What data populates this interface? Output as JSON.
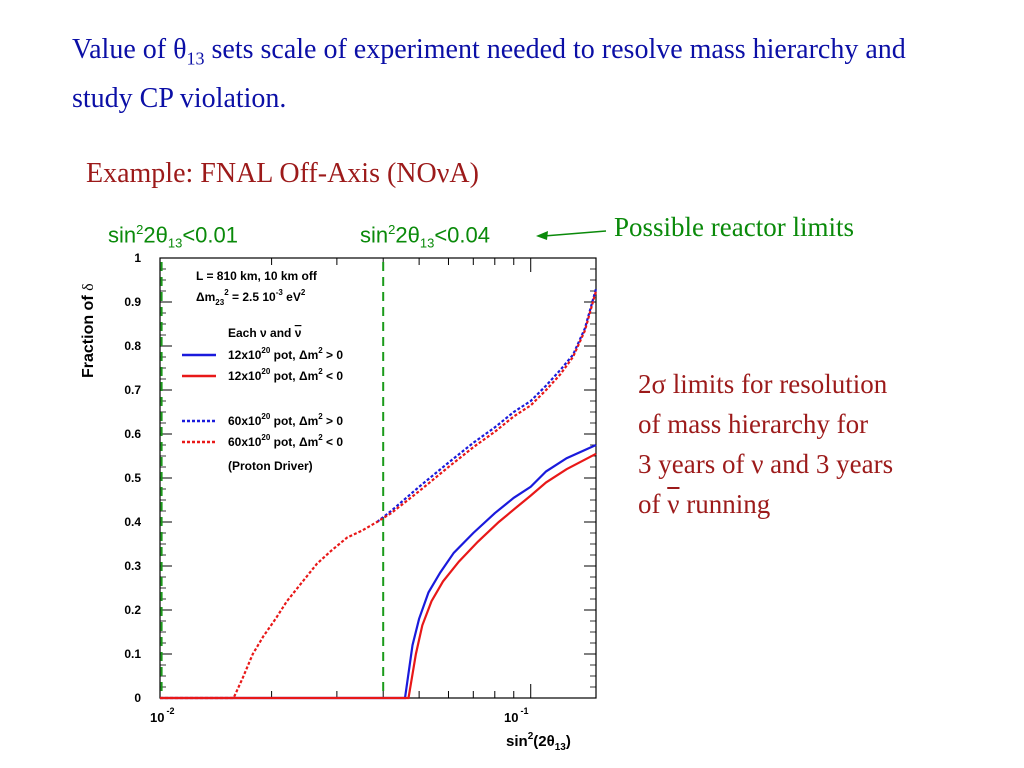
{
  "heading": {
    "part1": "Value of θ",
    "sub": "13",
    "part2": " sets scale of experiment needed to resolve mass hierarchy and study CP violation."
  },
  "example_title": "Example: FNAL Off-Axis (NOνA)",
  "limit_labels": {
    "left": {
      "pre": "sin",
      "sup": "2",
      "mid": "2θ",
      "sub": "13",
      "post": "<0.01"
    },
    "right": {
      "pre": "sin",
      "sup": "2",
      "mid": "2θ",
      "sub": "13",
      "post": "<0.04"
    }
  },
  "reactor_label": "Possible reactor limits",
  "note": {
    "line1": "2σ limits for resolution",
    "line2": "of mass hierarchy for",
    "line3": "3 years of ν and 3 years",
    "line4_pre": "of ",
    "line4_nu": "ν",
    "line4_post": " running"
  },
  "colors": {
    "blue": "#1a1adc",
    "red": "#e81818",
    "green": "#1a9a1a",
    "heading_blue": "#0b0fa6",
    "dark_red": "#9c1a1a"
  },
  "chart_data": {
    "type": "line",
    "xlabel": {
      "pre": "sin",
      "sup": "2",
      "mid": "(2θ",
      "sub": "13",
      "post": ")"
    },
    "ylabel": {
      "pre": "Fraction of ",
      "sym": "δ"
    },
    "xscale": "log",
    "xlim": [
      0.01,
      0.15
    ],
    "ylim": [
      0,
      1
    ],
    "xtick_labels": [
      {
        "value": 0.01,
        "base": "10",
        "exp": "-2"
      },
      {
        "value": 0.1,
        "base": "10",
        "exp": "-1"
      }
    ],
    "yticks": [
      0,
      0.1,
      0.2,
      0.3,
      0.4,
      0.5,
      0.6,
      0.7,
      0.8,
      0.9,
      1
    ],
    "ytick_labels": [
      "0",
      "0.1",
      "0.2",
      "0.3",
      "0.4",
      "0.5",
      "0.6",
      "0.7",
      "0.8",
      "0.9",
      "1"
    ],
    "vlines": [
      {
        "x": 0.0101,
        "color": "#1a9a1a"
      },
      {
        "x": 0.04,
        "color": "#1a9a1a"
      }
    ],
    "info": {
      "line1": "L = 810 km, 10 km off",
      "line2": {
        "pre": "Δm",
        "sub": "23",
        "sup": "2",
        "post": " = 2.5 10",
        "exp": "-3",
        "tail": " eV",
        "tail_sup": "2"
      },
      "each": {
        "pre": "Each ν and ",
        "nubar": "ν"
      },
      "proton": "(Proton Driver)"
    },
    "series": [
      {
        "legend": {
          "pre": "12x10",
          "sup": "20",
          "mid": " pot, Δm",
          "sup2": "2",
          "post": " > 0"
        },
        "color": "#1a1adc",
        "dash": false,
        "points": [
          [
            0.01,
            0
          ],
          [
            0.0458,
            0
          ],
          [
            0.048,
            0.12
          ],
          [
            0.05,
            0.18
          ],
          [
            0.053,
            0.24
          ],
          [
            0.057,
            0.285
          ],
          [
            0.062,
            0.33
          ],
          [
            0.07,
            0.375
          ],
          [
            0.08,
            0.42
          ],
          [
            0.09,
            0.455
          ],
          [
            0.1,
            0.48
          ],
          [
            0.11,
            0.515
          ],
          [
            0.125,
            0.545
          ],
          [
            0.15,
            0.575
          ]
        ]
      },
      {
        "legend": {
          "pre": "12x10",
          "sup": "20",
          "mid": " pot, Δm",
          "sup2": "2",
          "post": " < 0"
        },
        "color": "#e81818",
        "dash": false,
        "points": [
          [
            0.01,
            0
          ],
          [
            0.0468,
            0
          ],
          [
            0.049,
            0.1
          ],
          [
            0.051,
            0.165
          ],
          [
            0.054,
            0.22
          ],
          [
            0.058,
            0.265
          ],
          [
            0.064,
            0.31
          ],
          [
            0.072,
            0.355
          ],
          [
            0.082,
            0.4
          ],
          [
            0.092,
            0.435
          ],
          [
            0.1,
            0.46
          ],
          [
            0.11,
            0.49
          ],
          [
            0.125,
            0.52
          ],
          [
            0.15,
            0.555
          ]
        ]
      },
      {
        "legend": {
          "pre": "60x10",
          "sup": "20",
          "mid": " pot, Δm",
          "sup2": "2",
          "post": " > 0"
        },
        "color": "#1a1adc",
        "dash": true,
        "points": [
          [
            0.0385,
            0.4
          ],
          [
            0.042,
            0.425
          ],
          [
            0.05,
            0.48
          ],
          [
            0.06,
            0.535
          ],
          [
            0.07,
            0.58
          ],
          [
            0.08,
            0.615
          ],
          [
            0.09,
            0.65
          ],
          [
            0.1,
            0.675
          ],
          [
            0.11,
            0.71
          ],
          [
            0.12,
            0.745
          ],
          [
            0.13,
            0.78
          ],
          [
            0.14,
            0.84
          ],
          [
            0.15,
            0.93
          ]
        ]
      },
      {
        "legend": {
          "pre": "60x10",
          "sup": "20",
          "mid": " pot, Δm",
          "sup2": "2",
          "post": " < 0"
        },
        "color": "#e81818",
        "dash": true,
        "points": [
          [
            0.01,
            0
          ],
          [
            0.0158,
            0
          ],
          [
            0.0167,
            0.045
          ],
          [
            0.0178,
            0.1
          ],
          [
            0.019,
            0.14
          ],
          [
            0.0205,
            0.18
          ],
          [
            0.022,
            0.22
          ],
          [
            0.024,
            0.26
          ],
          [
            0.0265,
            0.305
          ],
          [
            0.029,
            0.335
          ],
          [
            0.032,
            0.365
          ],
          [
            0.035,
            0.38
          ],
          [
            0.0385,
            0.4
          ],
          [
            0.042,
            0.42
          ],
          [
            0.05,
            0.47
          ],
          [
            0.06,
            0.525
          ],
          [
            0.07,
            0.57
          ],
          [
            0.08,
            0.605
          ],
          [
            0.09,
            0.64
          ],
          [
            0.1,
            0.665
          ],
          [
            0.11,
            0.7
          ],
          [
            0.12,
            0.735
          ],
          [
            0.13,
            0.775
          ],
          [
            0.14,
            0.835
          ],
          [
            0.15,
            0.925
          ]
        ]
      }
    ]
  }
}
